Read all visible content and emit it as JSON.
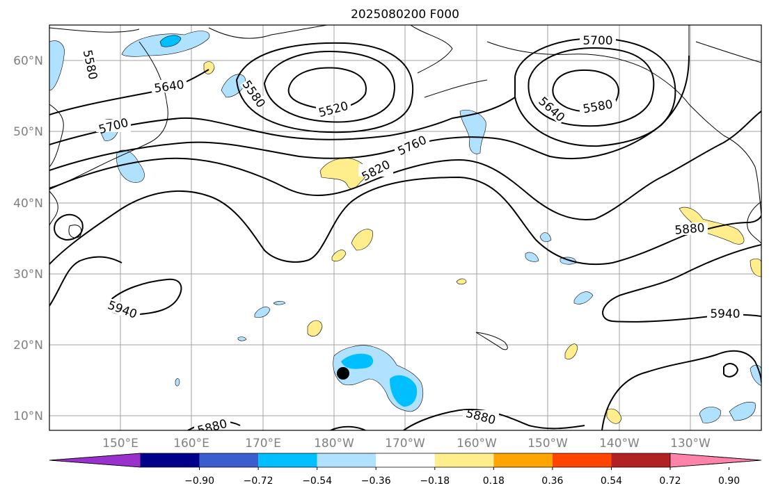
{
  "title": "2025080200 F000",
  "lat_labels": [
    "60°N",
    "50°N",
    "40°N",
    "30°N",
    "20°N",
    "10°N"
  ],
  "lon_labels": [
    "150°E",
    "160°E",
    "170°E",
    "180°W",
    "170°W",
    "160°W",
    "150°W",
    "140°W",
    "130°W"
  ],
  "contour_labels": [
    "5580",
    "5640",
    "5580",
    "5520",
    "5700",
    "5760",
    "5820",
    "5700",
    "5640",
    "5580",
    "5880",
    "5940",
    "5940",
    "5880",
    "5880"
  ],
  "colorbar": {
    "tick_labels": [
      "−0.90",
      "−0.72",
      "−0.54",
      "−0.36",
      "−0.18",
      "0.18",
      "0.36",
      "0.54",
      "0.72",
      "0.90"
    ],
    "colors": [
      "#9932cc",
      "#00008b",
      "#3a5fcd",
      "#00bfff",
      "#b0e2ff",
      "#ffffff",
      "#ffee8b",
      "#ffa500",
      "#ff4500",
      "#b22222",
      "#ff82ab"
    ]
  },
  "map": {
    "lat_range": [
      8,
      65
    ],
    "lon_range": [
      "140°E",
      "120°W"
    ],
    "grid": true,
    "storm_marker_color": "#000000"
  }
}
